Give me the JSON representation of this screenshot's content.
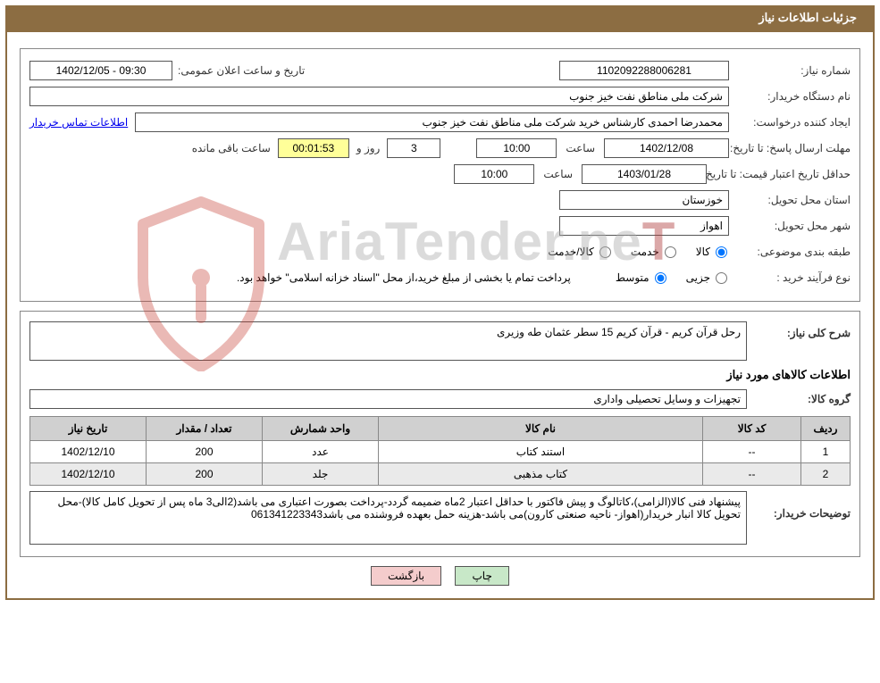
{
  "title_bar": "جزئیات اطلاعات نیاز",
  "fields": {
    "need_number_label": "شماره نیاز:",
    "need_number_value": "1102092288006281",
    "announce_dt_label": "تاریخ و ساعت اعلان عمومی:",
    "announce_dt_value": "1402/12/05 - 09:30",
    "buyer_org_label": "نام دستگاه خریدار:",
    "buyer_org_value": "شرکت ملی مناطق نفت خیز جنوب",
    "requester_label": "ایجاد کننده درخواست:",
    "requester_value": "محمدرضا احمدی  کارشناس خرید  شرکت ملی مناطق نفت خیز جنوب",
    "contact_link": "اطلاعات تماس خریدار",
    "response_deadline_label": "مهلت ارسال پاسخ: تا تاریخ:",
    "response_deadline_date": "1402/12/08",
    "time_label": "ساعت",
    "response_deadline_time": "10:00",
    "days_remaining": "3",
    "days_and_label": "روز و",
    "countdown": "00:01:53",
    "hours_remaining_label": "ساعت باقی مانده",
    "price_validity_label": "حداقل تاریخ اعتبار قیمت: تا تاریخ:",
    "price_validity_date": "1403/01/28",
    "price_validity_time": "10:00",
    "province_label": "استان محل تحویل:",
    "province_value": "خوزستان",
    "city_label": "شهر محل تحویل:",
    "city_value": "اهواز",
    "category_label": "طبقه بندی موضوعی:",
    "cat_goods": "کالا",
    "cat_service": "خدمت",
    "cat_goods_service": "کالا/خدمت",
    "purchase_type_label": "نوع فرآیند خرید :",
    "pt_minor": "جزیی",
    "pt_medium": "متوسط",
    "payment_note": "پرداخت تمام یا بخشی از مبلغ خرید،از محل \"اسناد خزانه اسلامی\" خواهد بود.",
    "general_desc_label": "شرح کلی نیاز:",
    "general_desc_value": "رحل قرآن کریم - قرآن کریم 15 سطر عثمان طه وزیری",
    "items_header": "اطلاعات کالاهای مورد نیاز",
    "goods_group_label": "گروه کالا:",
    "goods_group_value": "تجهیزات و وسایل تحصیلی واداری",
    "buyer_notes_label": "توضیحات خریدار:",
    "buyer_notes_value": "پیشنهاد فنی کالا(الزامی)،کاتالوگ و پیش فاکتور با حداقل اعتبار 2ماه ضمیمه گردد-پرداخت بصورت اعتباری می باشد(2الی3 ماه پس از تحویل کامل کالا)-محل تحویل کالا انبار خریدار(اهواز- ناحیه صنعتی کارون)می باشد-هزینه حمل بعهده فروشنده می باشد061341223343"
  },
  "table": {
    "headers": {
      "row": "ردیف",
      "code": "کد کالا",
      "name": "نام کالا",
      "unit": "واحد شمارش",
      "qty": "تعداد / مقدار",
      "date": "تاریخ نیاز"
    },
    "rows": [
      {
        "row": "1",
        "code": "--",
        "name": "استند کتاب",
        "unit": "عدد",
        "qty": "200",
        "date": "1402/12/10"
      },
      {
        "row": "2",
        "code": "--",
        "name": "کتاب مذهبی",
        "unit": "جلد",
        "qty": "200",
        "date": "1402/12/10"
      }
    ]
  },
  "buttons": {
    "print": "چاپ",
    "back": "بازگشت"
  },
  "watermark": {
    "text": "AriaTender.ne",
    "suffix": "T"
  }
}
